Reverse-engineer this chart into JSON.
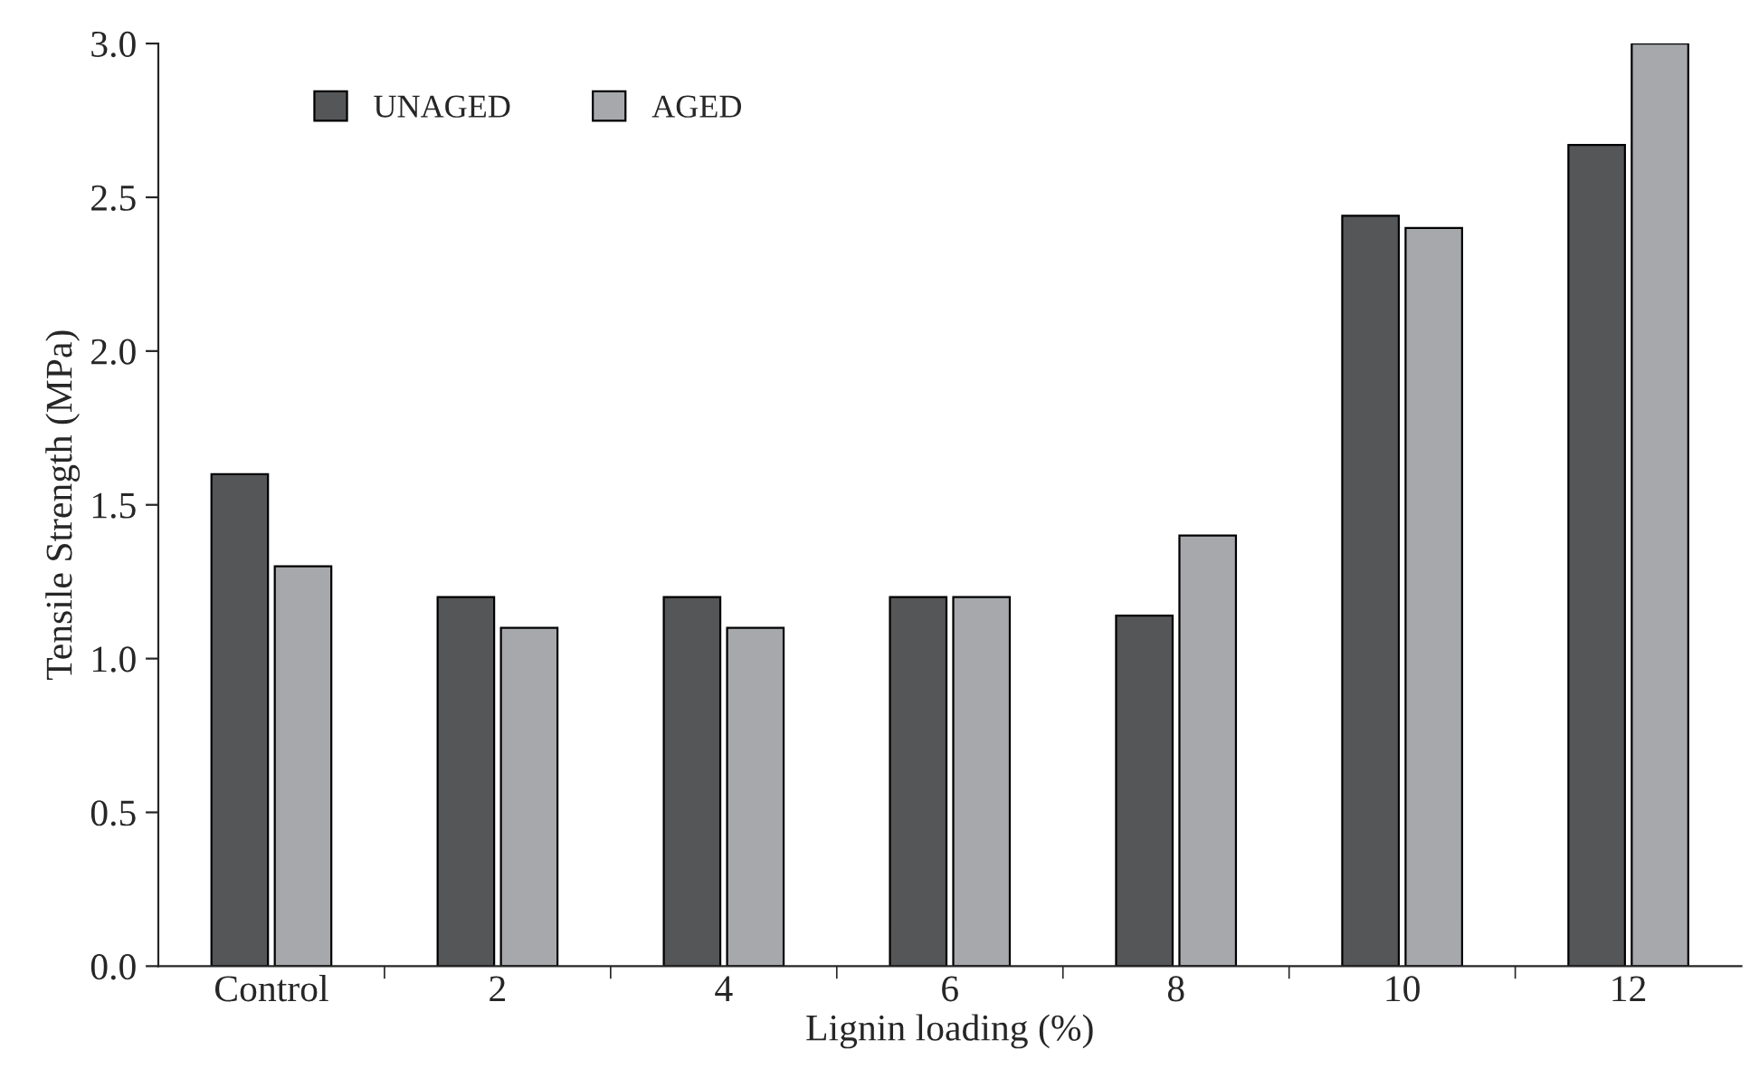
{
  "chart_data": {
    "type": "bar",
    "xlabel": "Lignin loading (%)",
    "ylabel": "Tensile Strength (MPa)",
    "categories": [
      "Control",
      "2",
      "4",
      "6",
      "8",
      "10",
      "12"
    ],
    "series": [
      {
        "name": "UNAGED",
        "color": "#555658",
        "values": [
          1.6,
          1.2,
          1.2,
          1.2,
          1.14,
          2.44,
          2.67
        ]
      },
      {
        "name": "AGED",
        "color": "#a7a8ac",
        "values": [
          1.3,
          1.1,
          1.1,
          1.2,
          1.4,
          2.4,
          3.0
        ]
      }
    ],
    "ylim": [
      0,
      3.0
    ],
    "yticks": [
      {
        "value": 0,
        "label": "0.0"
      },
      {
        "value": 0.5,
        "label": "0.5"
      },
      {
        "value": 1.0,
        "label": "1.0"
      },
      {
        "value": 1.5,
        "label": "1.5"
      },
      {
        "value": 2.0,
        "label": "2.0"
      },
      {
        "value": 2.5,
        "label": "2.5"
      },
      {
        "value": 3.0,
        "label": "3.0"
      }
    ],
    "grid": false,
    "legend": "top left"
  }
}
